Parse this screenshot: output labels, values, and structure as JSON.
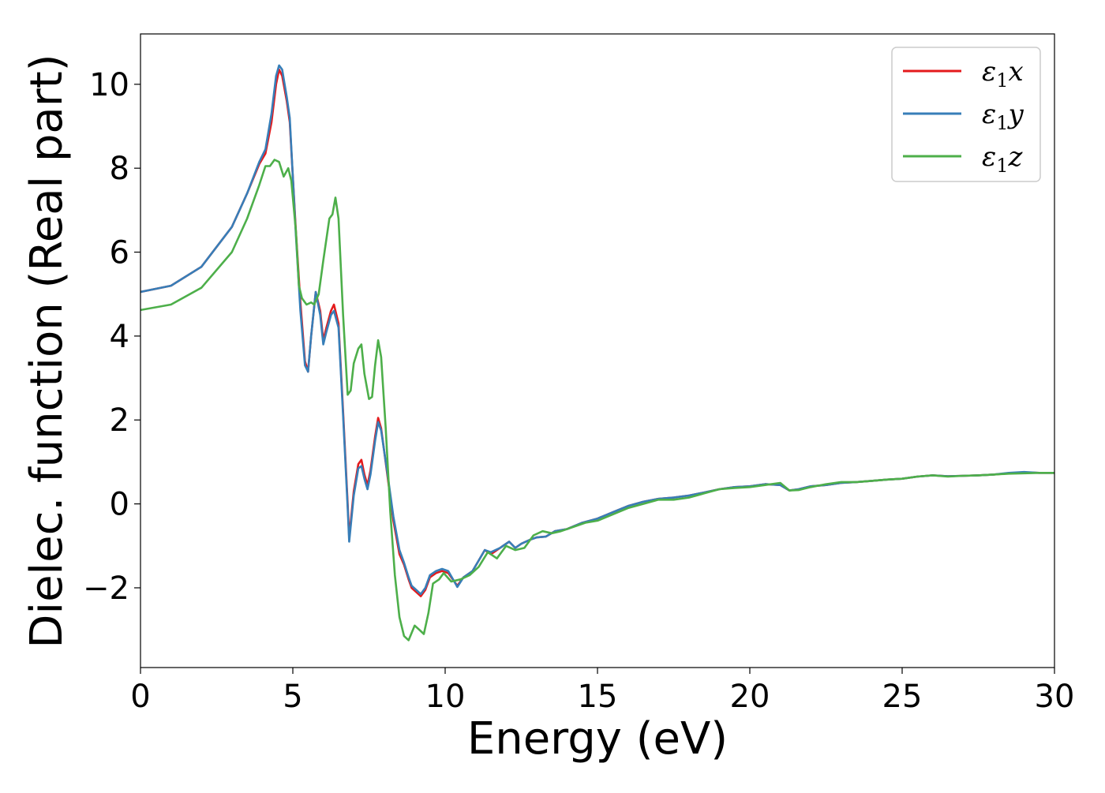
{
  "chart_data": {
    "type": "line",
    "title": "",
    "xlabel": "Energy (eV)",
    "ylabel": "Dielec. function (Real part)",
    "xlim": [
      0,
      30
    ],
    "ylim": [
      -3.9,
      11.2
    ],
    "xticks": [
      0,
      5,
      10,
      15,
      20,
      25,
      30
    ],
    "xtick_labels": [
      "0",
      "5",
      "10",
      "15",
      "20",
      "25",
      "30"
    ],
    "yticks": [
      -2,
      0,
      2,
      4,
      6,
      8,
      10
    ],
    "ytick_labels": [
      "−2",
      "0",
      "2",
      "4",
      "6",
      "8",
      "10"
    ],
    "grid": false,
    "legend_position": "top-right",
    "series": [
      {
        "name_base": "ε",
        "name_sub": "1",
        "name_var": "x",
        "color": "#e41a1c",
        "points": [
          [
            0,
            5.05
          ],
          [
            1,
            5.2
          ],
          [
            2,
            5.65
          ],
          [
            3,
            6.6
          ],
          [
            3.5,
            7.4
          ],
          [
            3.9,
            8.1
          ],
          [
            4.1,
            8.35
          ],
          [
            4.3,
            9.1
          ],
          [
            4.45,
            10.0
          ],
          [
            4.55,
            10.35
          ],
          [
            4.65,
            10.2
          ],
          [
            4.8,
            9.6
          ],
          [
            4.9,
            9.1
          ],
          [
            5.1,
            6.5
          ],
          [
            5.25,
            4.8
          ],
          [
            5.4,
            3.4
          ],
          [
            5.5,
            3.15
          ],
          [
            5.6,
            4.0
          ],
          [
            5.75,
            5.05
          ],
          [
            5.9,
            4.6
          ],
          [
            6.0,
            3.9
          ],
          [
            6.1,
            4.2
          ],
          [
            6.25,
            4.6
          ],
          [
            6.35,
            4.75
          ],
          [
            6.5,
            4.3
          ],
          [
            6.65,
            2.2
          ],
          [
            6.8,
            0.0
          ],
          [
            6.85,
            -0.8
          ],
          [
            7.0,
            0.3
          ],
          [
            7.15,
            0.95
          ],
          [
            7.25,
            1.05
          ],
          [
            7.35,
            0.7
          ],
          [
            7.45,
            0.45
          ],
          [
            7.55,
            0.8
          ],
          [
            7.7,
            1.6
          ],
          [
            7.8,
            2.05
          ],
          [
            7.9,
            1.8
          ],
          [
            8.1,
            0.7
          ],
          [
            8.3,
            -0.4
          ],
          [
            8.5,
            -1.2
          ],
          [
            8.65,
            -1.45
          ],
          [
            8.8,
            -1.8
          ],
          [
            8.9,
            -2.0
          ],
          [
            9.05,
            -2.1
          ],
          [
            9.2,
            -2.2
          ],
          [
            9.35,
            -2.05
          ],
          [
            9.5,
            -1.75
          ],
          [
            9.7,
            -1.65
          ],
          [
            9.9,
            -1.6
          ],
          [
            10.1,
            -1.65
          ],
          [
            10.3,
            -1.85
          ],
          [
            10.4,
            -1.95
          ],
          [
            10.6,
            -1.75
          ],
          [
            10.9,
            -1.6
          ],
          [
            11.1,
            -1.35
          ],
          [
            11.3,
            -1.1
          ],
          [
            11.5,
            -1.2
          ],
          [
            11.8,
            -1.05
          ],
          [
            12.1,
            -0.9
          ],
          [
            12.3,
            -1.05
          ],
          [
            12.5,
            -0.95
          ],
          [
            12.8,
            -0.85
          ],
          [
            13.0,
            -0.8
          ],
          [
            13.3,
            -0.78
          ],
          [
            13.6,
            -0.65
          ],
          [
            14.0,
            -0.6
          ],
          [
            14.5,
            -0.45
          ],
          [
            15.0,
            -0.35
          ],
          [
            15.5,
            -0.2
          ],
          [
            16.0,
            -0.05
          ],
          [
            16.5,
            0.05
          ],
          [
            17.0,
            0.12
          ],
          [
            17.5,
            0.15
          ],
          [
            18.0,
            0.2
          ],
          [
            18.5,
            0.27
          ],
          [
            19.0,
            0.35
          ],
          [
            19.5,
            0.4
          ],
          [
            20.0,
            0.42
          ],
          [
            20.5,
            0.47
          ],
          [
            21.0,
            0.45
          ],
          [
            21.3,
            0.32
          ],
          [
            21.6,
            0.35
          ],
          [
            22.0,
            0.42
          ],
          [
            22.5,
            0.45
          ],
          [
            23.0,
            0.5
          ],
          [
            23.5,
            0.52
          ],
          [
            24.0,
            0.55
          ],
          [
            24.5,
            0.58
          ],
          [
            25.0,
            0.6
          ],
          [
            25.5,
            0.65
          ],
          [
            26.0,
            0.68
          ],
          [
            26.5,
            0.66
          ],
          [
            27.0,
            0.67
          ],
          [
            27.5,
            0.68
          ],
          [
            28.0,
            0.7
          ],
          [
            28.5,
            0.73
          ],
          [
            29.0,
            0.75
          ],
          [
            29.5,
            0.74
          ],
          [
            30.0,
            0.74
          ]
        ]
      },
      {
        "name_base": "ε",
        "name_sub": "1",
        "name_var": "y",
        "color": "#377eb8",
        "points": [
          [
            0,
            5.05
          ],
          [
            1,
            5.2
          ],
          [
            2,
            5.65
          ],
          [
            3,
            6.6
          ],
          [
            3.5,
            7.4
          ],
          [
            3.9,
            8.15
          ],
          [
            4.1,
            8.45
          ],
          [
            4.3,
            9.3
          ],
          [
            4.45,
            10.2
          ],
          [
            4.55,
            10.45
          ],
          [
            4.65,
            10.35
          ],
          [
            4.8,
            9.7
          ],
          [
            4.9,
            9.2
          ],
          [
            5.1,
            6.4
          ],
          [
            5.25,
            4.6
          ],
          [
            5.4,
            3.3
          ],
          [
            5.5,
            3.15
          ],
          [
            5.6,
            4.0
          ],
          [
            5.75,
            5.05
          ],
          [
            5.9,
            4.5
          ],
          [
            6.0,
            3.8
          ],
          [
            6.1,
            4.1
          ],
          [
            6.25,
            4.5
          ],
          [
            6.35,
            4.6
          ],
          [
            6.5,
            4.2
          ],
          [
            6.65,
            2.1
          ],
          [
            6.8,
            -0.1
          ],
          [
            6.85,
            -0.9
          ],
          [
            7.0,
            0.2
          ],
          [
            7.15,
            0.85
          ],
          [
            7.25,
            0.9
          ],
          [
            7.35,
            0.6
          ],
          [
            7.45,
            0.35
          ],
          [
            7.55,
            0.7
          ],
          [
            7.7,
            1.5
          ],
          [
            7.8,
            1.95
          ],
          [
            7.9,
            1.75
          ],
          [
            8.1,
            0.75
          ],
          [
            8.3,
            -0.3
          ],
          [
            8.5,
            -1.1
          ],
          [
            8.65,
            -1.4
          ],
          [
            8.8,
            -1.75
          ],
          [
            8.9,
            -1.95
          ],
          [
            9.05,
            -2.05
          ],
          [
            9.2,
            -2.15
          ],
          [
            9.35,
            -2.0
          ],
          [
            9.5,
            -1.7
          ],
          [
            9.7,
            -1.6
          ],
          [
            9.9,
            -1.55
          ],
          [
            10.1,
            -1.6
          ],
          [
            10.3,
            -1.85
          ],
          [
            10.4,
            -1.98
          ],
          [
            10.6,
            -1.75
          ],
          [
            10.9,
            -1.6
          ],
          [
            11.1,
            -1.35
          ],
          [
            11.3,
            -1.1
          ],
          [
            11.5,
            -1.15
          ],
          [
            11.8,
            -1.05
          ],
          [
            12.1,
            -0.9
          ],
          [
            12.3,
            -1.05
          ],
          [
            12.5,
            -0.95
          ],
          [
            12.8,
            -0.85
          ],
          [
            13.0,
            -0.8
          ],
          [
            13.3,
            -0.78
          ],
          [
            13.6,
            -0.65
          ],
          [
            14.0,
            -0.6
          ],
          [
            14.5,
            -0.45
          ],
          [
            15.0,
            -0.35
          ],
          [
            15.5,
            -0.2
          ],
          [
            16.0,
            -0.05
          ],
          [
            16.5,
            0.05
          ],
          [
            17.0,
            0.12
          ],
          [
            17.5,
            0.15
          ],
          [
            18.0,
            0.2
          ],
          [
            18.5,
            0.27
          ],
          [
            19.0,
            0.35
          ],
          [
            19.5,
            0.4
          ],
          [
            20.0,
            0.42
          ],
          [
            20.5,
            0.47
          ],
          [
            21.0,
            0.45
          ],
          [
            21.3,
            0.32
          ],
          [
            21.6,
            0.35
          ],
          [
            22.0,
            0.42
          ],
          [
            22.5,
            0.45
          ],
          [
            23.0,
            0.5
          ],
          [
            23.5,
            0.52
          ],
          [
            24.0,
            0.55
          ],
          [
            24.5,
            0.58
          ],
          [
            25.0,
            0.6
          ],
          [
            25.5,
            0.65
          ],
          [
            26.0,
            0.68
          ],
          [
            26.5,
            0.66
          ],
          [
            27.0,
            0.67
          ],
          [
            27.5,
            0.68
          ],
          [
            28.0,
            0.7
          ],
          [
            28.5,
            0.74
          ],
          [
            29.0,
            0.76
          ],
          [
            29.5,
            0.74
          ],
          [
            30.0,
            0.74
          ]
        ]
      },
      {
        "name_base": "ε",
        "name_sub": "1",
        "name_var": "z",
        "color": "#4daf4a",
        "points": [
          [
            0,
            4.62
          ],
          [
            1,
            4.75
          ],
          [
            2,
            5.15
          ],
          [
            3,
            6.0
          ],
          [
            3.5,
            6.8
          ],
          [
            3.9,
            7.6
          ],
          [
            4.1,
            8.05
          ],
          [
            4.25,
            8.05
          ],
          [
            4.4,
            8.2
          ],
          [
            4.55,
            8.15
          ],
          [
            4.7,
            7.8
          ],
          [
            4.85,
            8.0
          ],
          [
            4.95,
            7.7
          ],
          [
            5.1,
            6.5
          ],
          [
            5.2,
            5.2
          ],
          [
            5.3,
            4.9
          ],
          [
            5.45,
            4.75
          ],
          [
            5.6,
            4.8
          ],
          [
            5.7,
            4.75
          ],
          [
            5.85,
            5.0
          ],
          [
            6.0,
            5.8
          ],
          [
            6.2,
            6.8
          ],
          [
            6.3,
            6.9
          ],
          [
            6.4,
            7.3
          ],
          [
            6.5,
            6.8
          ],
          [
            6.65,
            4.5
          ],
          [
            6.8,
            2.6
          ],
          [
            6.9,
            2.7
          ],
          [
            7.0,
            3.35
          ],
          [
            7.15,
            3.7
          ],
          [
            7.25,
            3.8
          ],
          [
            7.35,
            3.1
          ],
          [
            7.5,
            2.5
          ],
          [
            7.6,
            2.55
          ],
          [
            7.7,
            3.3
          ],
          [
            7.8,
            3.9
          ],
          [
            7.9,
            3.5
          ],
          [
            8.05,
            1.8
          ],
          [
            8.2,
            -0.2
          ],
          [
            8.35,
            -1.7
          ],
          [
            8.5,
            -2.7
          ],
          [
            8.65,
            -3.15
          ],
          [
            8.8,
            -3.25
          ],
          [
            9.0,
            -2.9
          ],
          [
            9.15,
            -3.0
          ],
          [
            9.3,
            -3.1
          ],
          [
            9.45,
            -2.6
          ],
          [
            9.6,
            -1.9
          ],
          [
            9.8,
            -1.8
          ],
          [
            9.95,
            -1.65
          ],
          [
            10.2,
            -1.85
          ],
          [
            10.5,
            -1.8
          ],
          [
            10.8,
            -1.7
          ],
          [
            11.1,
            -1.5
          ],
          [
            11.4,
            -1.15
          ],
          [
            11.7,
            -1.3
          ],
          [
            12.0,
            -1.0
          ],
          [
            12.3,
            -1.1
          ],
          [
            12.6,
            -1.05
          ],
          [
            12.9,
            -0.75
          ],
          [
            13.2,
            -0.65
          ],
          [
            13.5,
            -0.7
          ],
          [
            13.8,
            -0.65
          ],
          [
            14.2,
            -0.55
          ],
          [
            14.6,
            -0.45
          ],
          [
            15.0,
            -0.4
          ],
          [
            15.5,
            -0.25
          ],
          [
            16.0,
            -0.1
          ],
          [
            16.5,
            0.0
          ],
          [
            17.0,
            0.1
          ],
          [
            17.5,
            0.1
          ],
          [
            18.0,
            0.15
          ],
          [
            18.5,
            0.25
          ],
          [
            19.0,
            0.35
          ],
          [
            19.5,
            0.38
          ],
          [
            20.0,
            0.4
          ],
          [
            20.5,
            0.45
          ],
          [
            21.0,
            0.5
          ],
          [
            21.3,
            0.32
          ],
          [
            21.6,
            0.33
          ],
          [
            22.0,
            0.4
          ],
          [
            22.5,
            0.47
          ],
          [
            23.0,
            0.52
          ],
          [
            23.5,
            0.52
          ],
          [
            24.0,
            0.55
          ],
          [
            24.5,
            0.58
          ],
          [
            25.0,
            0.6
          ],
          [
            25.5,
            0.65
          ],
          [
            26.0,
            0.68
          ],
          [
            26.5,
            0.65
          ],
          [
            27.0,
            0.67
          ],
          [
            27.5,
            0.68
          ],
          [
            28.0,
            0.7
          ],
          [
            28.5,
            0.72
          ],
          [
            29.0,
            0.73
          ],
          [
            29.5,
            0.74
          ],
          [
            30.0,
            0.74
          ]
        ]
      }
    ]
  }
}
